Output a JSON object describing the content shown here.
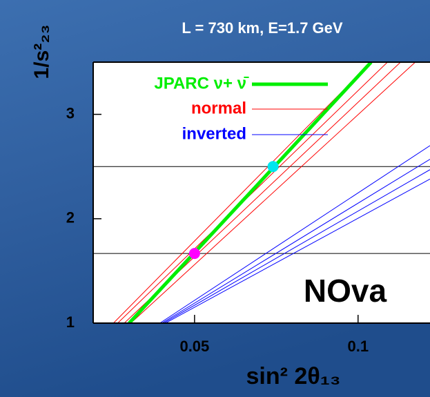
{
  "chart_data": {
    "type": "line",
    "title": "L = 730 km, E=1.7 GeV",
    "x_label": "sin² 2θ₁₃",
    "y_label": "1/s²₂₃",
    "annotation": "NOva",
    "xlim": [
      0.019,
      0.122
    ],
    "ylim": [
      1,
      3.5
    ],
    "xticks": [
      0.05,
      0.1
    ],
    "yticks": [
      1,
      2,
      3
    ],
    "hlines": [
      2.5,
      1.667
    ],
    "series": [
      {
        "name": "normal",
        "color": "#ff0000",
        "width": 1,
        "lines": [
          {
            "x": [
              0.0252,
              0.104
            ],
            "y": [
              1,
              3.5
            ]
          },
          {
            "x": [
              0.0265,
              0.109
            ],
            "y": [
              1,
              3.5
            ]
          },
          {
            "x": [
              0.0285,
              0.113
            ],
            "y": [
              1,
              3.5
            ]
          },
          {
            "x": [
              0.0305,
              0.1175
            ],
            "y": [
              1,
              3.5
            ]
          }
        ]
      },
      {
        "name": "inverted",
        "color": "#0000ff",
        "width": 1,
        "lines": [
          {
            "x": [
              0.0394,
              0.122
            ],
            "y": [
              1,
              2.7
            ]
          },
          {
            "x": [
              0.04,
              0.122
            ],
            "y": [
              1,
              2.57
            ]
          },
          {
            "x": [
              0.0405,
              0.122
            ],
            "y": [
              1,
              2.47
            ]
          },
          {
            "x": [
              0.0411,
              0.122
            ],
            "y": [
              1,
              2.38
            ]
          }
        ]
      },
      {
        "name": "JPARC ν+ ν̄",
        "color": "#00ee00",
        "width": 5,
        "lines": [
          {
            "x": [
              0.03,
              0.104
            ],
            "y": [
              1,
              3.5
            ]
          }
        ]
      }
    ],
    "points": [
      {
        "x": 0.05,
        "y": 1.667,
        "color": "#ff00ff"
      },
      {
        "x": 0.074,
        "y": 2.5,
        "color": "#00e5ee"
      }
    ]
  }
}
